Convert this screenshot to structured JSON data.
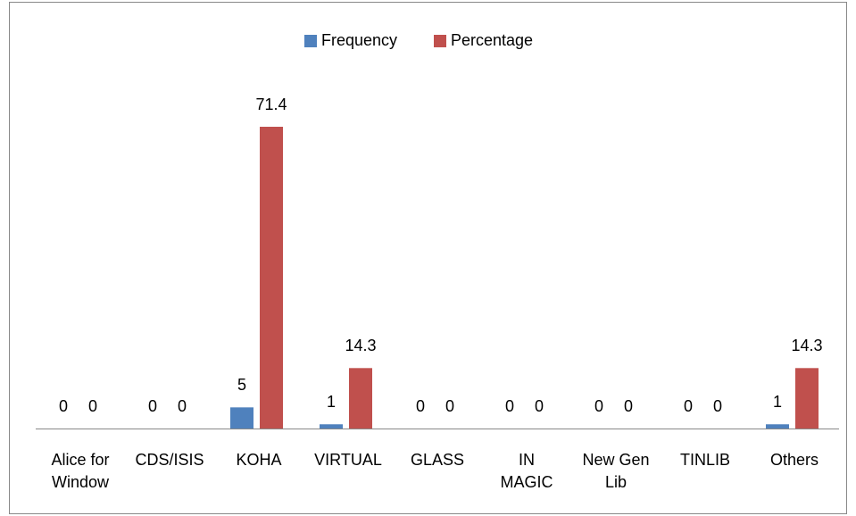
{
  "chart_data": {
    "type": "bar",
    "categories": [
      "Alice for Window",
      "CDS/ISIS",
      "KOHA",
      "VIRTUAL",
      "GLASS",
      "IN MAGIC",
      "New Gen Lib",
      "TINLIB",
      "Others"
    ],
    "series": [
      {
        "name": "Frequency",
        "color": "#4f81bd",
        "values": [
          0,
          0,
          5,
          1,
          0,
          0,
          0,
          0,
          1
        ]
      },
      {
        "name": "Percentage",
        "color": "#c0504d",
        "values": [
          0,
          0,
          71.4,
          14.3,
          0,
          0,
          0,
          0,
          14.3
        ]
      }
    ],
    "legend": "top"
  }
}
